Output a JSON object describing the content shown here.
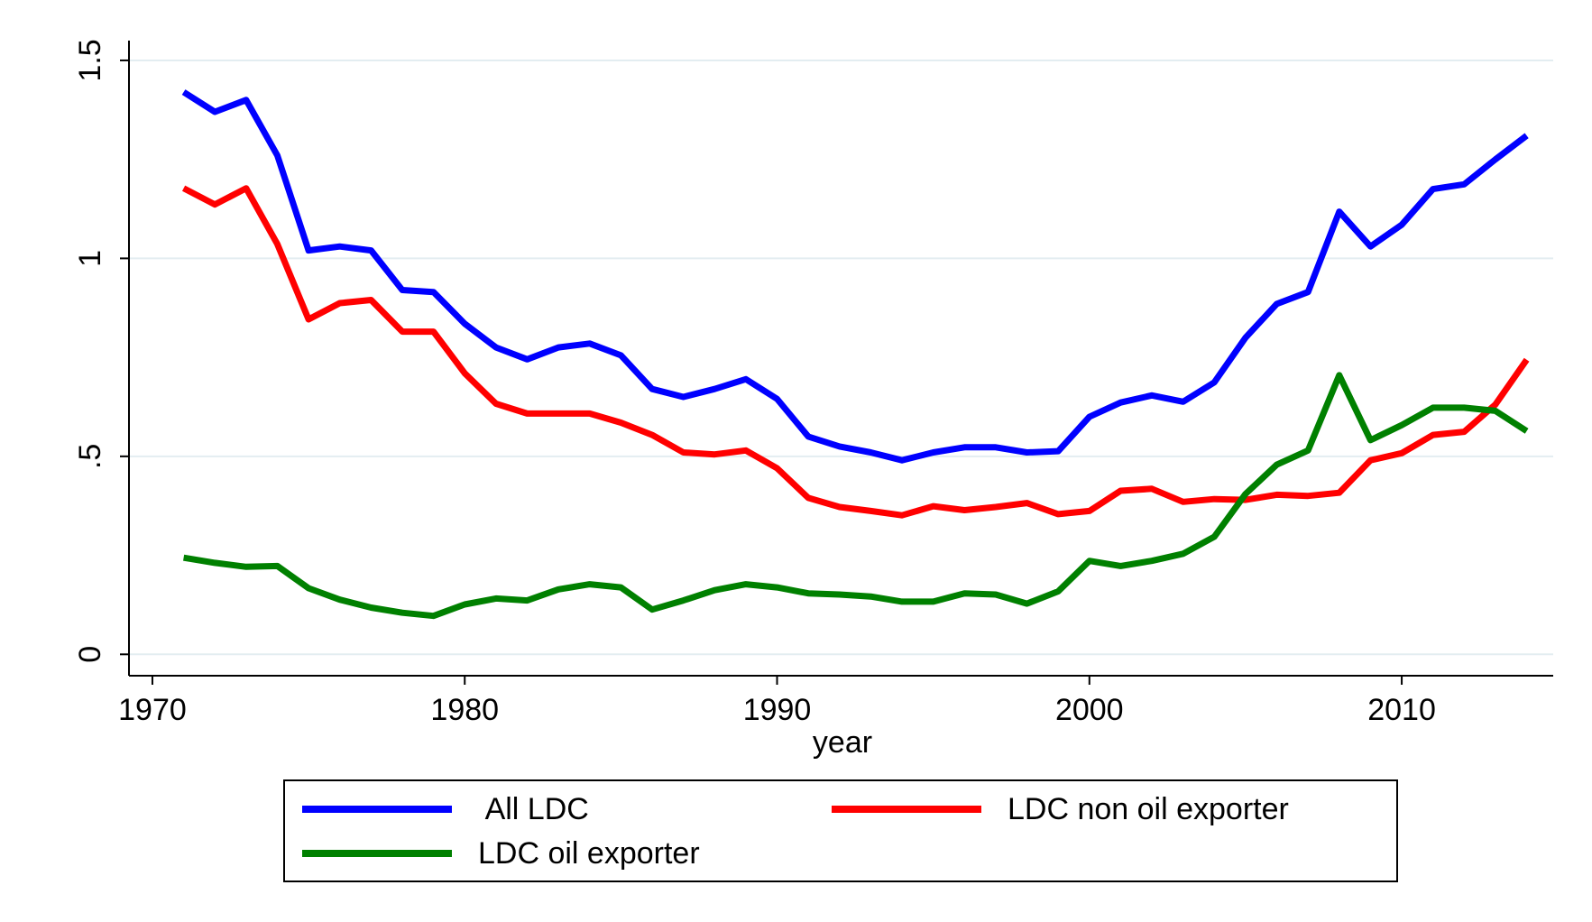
{
  "chart_data": {
    "type": "line",
    "x_label": "year",
    "x": [
      1971,
      1972,
      1973,
      1974,
      1975,
      1976,
      1977,
      1978,
      1979,
      1980,
      1981,
      1982,
      1983,
      1984,
      1985,
      1986,
      1987,
      1988,
      1989,
      1990,
      1991,
      1992,
      1993,
      1994,
      1995,
      1996,
      1997,
      1998,
      1999,
      2000,
      2001,
      2002,
      2003,
      2004,
      2005,
      2006,
      2007,
      2008,
      2009,
      2010,
      2011,
      2012,
      2013,
      2014
    ],
    "series": [
      {
        "name": " All LDC",
        "color": "#0000ff",
        "values": [
          1.42,
          1.37,
          1.4,
          1.26,
          1.02,
          1.03,
          1.02,
          0.92,
          0.915,
          0.835,
          0.775,
          0.745,
          0.775,
          0.785,
          0.755,
          0.67,
          0.65,
          0.67,
          0.695,
          0.645,
          0.55,
          0.525,
          0.51,
          0.49,
          0.51,
          0.523,
          0.523,
          0.51,
          0.513,
          0.6,
          0.636,
          0.654,
          0.638,
          0.687,
          0.8,
          0.885,
          0.915,
          1.118,
          1.03,
          1.085,
          1.175,
          1.187,
          1.25,
          1.31
        ]
      },
      {
        "name": "LDC non oil exporter",
        "color": "#ff0000",
        "values": [
          1.177,
          1.136,
          1.177,
          1.036,
          0.846,
          0.887,
          0.895,
          0.815,
          0.815,
          0.71,
          0.633,
          0.608,
          0.608,
          0.608,
          0.585,
          0.554,
          0.51,
          0.505,
          0.515,
          0.47,
          0.395,
          0.372,
          0.362,
          0.351,
          0.374,
          0.364,
          0.372,
          0.382,
          0.354,
          0.362,
          0.413,
          0.418,
          0.385,
          0.392,
          0.39,
          0.403,
          0.4,
          0.408,
          0.49,
          0.508,
          0.554,
          0.562,
          0.631,
          0.744
        ]
      },
      {
        "name": "LDC oil exporter",
        "color": "#008000",
        "values": [
          0.244,
          0.231,
          0.221,
          0.223,
          0.167,
          0.138,
          0.118,
          0.105,
          0.097,
          0.126,
          0.141,
          0.136,
          0.164,
          0.177,
          0.169,
          0.113,
          0.136,
          0.162,
          0.177,
          0.169,
          0.154,
          0.151,
          0.146,
          0.133,
          0.133,
          0.154,
          0.151,
          0.128,
          0.159,
          0.236,
          0.223,
          0.236,
          0.254,
          0.297,
          0.405,
          0.479,
          0.515,
          0.705,
          0.541,
          0.579,
          0.623,
          0.623,
          0.615,
          0.564
        ]
      }
    ],
    "xlim": [
      1969.25,
      2014.85
    ],
    "xticks": [
      1970,
      1980,
      1990,
      2000,
      2010
    ],
    "ylim": [
      -0.054,
      1.55
    ],
    "yticks": [
      0,
      {
        "value": 0.5,
        "label": ".5"
      },
      1,
      1.5
    ],
    "grid": true,
    "legend": "bottom"
  }
}
